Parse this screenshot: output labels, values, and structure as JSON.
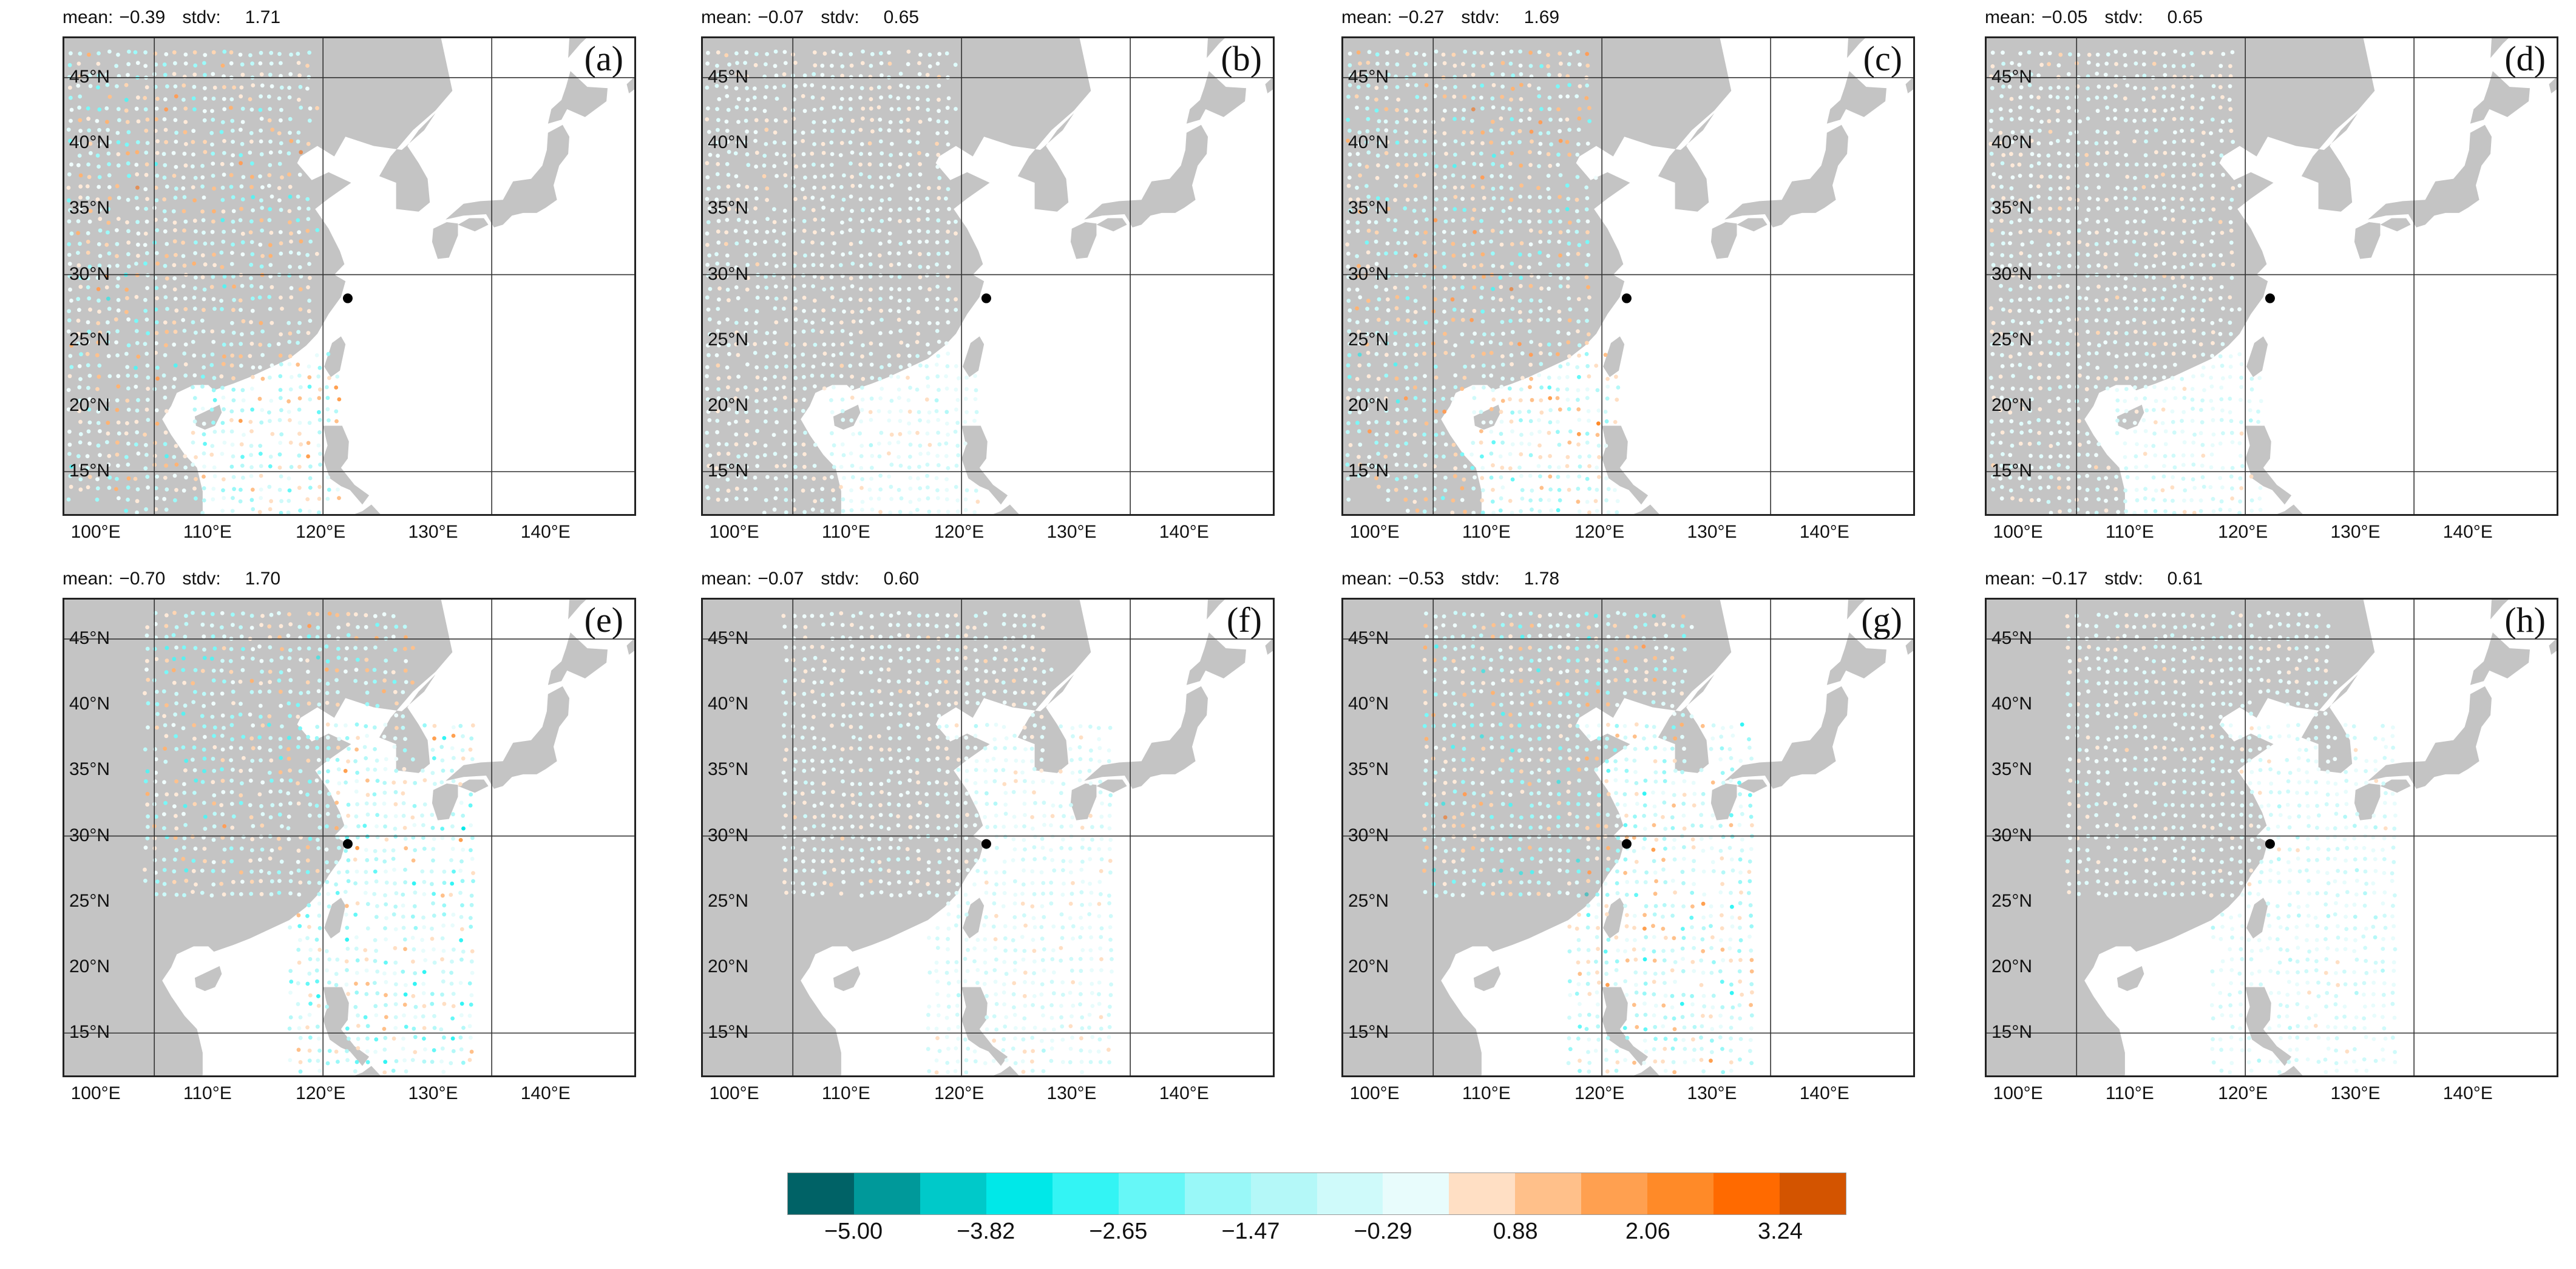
{
  "panels": [
    {
      "id": "a",
      "label": "(a)",
      "mean_label": "mean:",
      "mean": "−0.39",
      "stdv_label": "stdv:",
      "stdv": "1.71",
      "mean_value": -0.39,
      "stdv_value": 1.71,
      "coverage": "land"
    },
    {
      "id": "b",
      "label": "(b)",
      "mean_label": "mean:",
      "mean": "−0.07",
      "stdv_label": "stdv:",
      "stdv": "0.65",
      "mean_value": -0.07,
      "stdv_value": 0.65,
      "coverage": "land"
    },
    {
      "id": "c",
      "label": "(c)",
      "mean_label": "mean:",
      "mean": "−0.27",
      "stdv_label": "stdv:",
      "stdv": "1.69",
      "mean_value": -0.27,
      "stdv_value": 1.69,
      "coverage": "land"
    },
    {
      "id": "d",
      "label": "(d)",
      "mean_label": "mean:",
      "mean": "−0.05",
      "stdv_label": "stdv:",
      "stdv": "0.65",
      "mean_value": -0.05,
      "stdv_value": 0.65,
      "coverage": "land"
    },
    {
      "id": "e",
      "label": "(e)",
      "mean_label": "mean:",
      "mean": "−0.70",
      "stdv_label": "stdv:",
      "stdv": "1.70",
      "mean_value": -0.7,
      "stdv_value": 1.7,
      "coverage": "ocean"
    },
    {
      "id": "f",
      "label": "(f)",
      "mean_label": "mean:",
      "mean": "−0.07",
      "stdv_label": "stdv:",
      "stdv": "0.60",
      "mean_value": -0.07,
      "stdv_value": 0.6,
      "coverage": "ocean"
    },
    {
      "id": "g",
      "label": "(g)",
      "mean_label": "mean:",
      "mean": "−0.53",
      "stdv_label": "stdv:",
      "stdv": "1.78",
      "mean_value": -0.53,
      "stdv_value": 1.78,
      "coverage": "ocean"
    },
    {
      "id": "h",
      "label": "(h)",
      "mean_label": "mean:",
      "mean": "−0.17",
      "stdv_label": "stdv:",
      "stdv": "0.61",
      "mean_value": -0.17,
      "stdv_value": 0.61,
      "coverage": "ocean"
    }
  ],
  "latitude_labels": [
    "45°N",
    "40°N",
    "35°N",
    "30°N",
    "25°N",
    "20°N",
    "15°N"
  ],
  "latitude_values": [
    45,
    40,
    35,
    30,
    25,
    20,
    15
  ],
  "longitude_labels": [
    "100°E",
    "110°E",
    "120°E",
    "130°E",
    "140°E"
  ],
  "longitude_values": [
    100,
    110,
    120,
    130,
    140
  ],
  "map_extent": {
    "lon": [
      97,
      148
    ],
    "lat": [
      11.5,
      48
    ]
  },
  "station": {
    "lon_a_to_d": 122.2,
    "lat_a_to_d": 28.2,
    "lon_e_to_h": 122.2,
    "lat_e_to_h": 29.4
  },
  "colors": {
    "land": "#c4c4c4",
    "grid": "#333333",
    "station": "#000000"
  },
  "colorbar": {
    "colors": [
      "#006266",
      "#00999a",
      "#00c9c9",
      "#00e8e8",
      "#33f4f4",
      "#66f7f7",
      "#99f8f8",
      "#b4f8f8",
      "#cffafa",
      "#e8fcfc",
      "#ffdfc4",
      "#ffc08a",
      "#ffa050",
      "#ff8a28",
      "#ff6a00",
      "#d35400"
    ],
    "tick_labels": [
      "−5.00",
      "−3.82",
      "−2.65",
      "−1.47",
      "−0.29",
      "0.88",
      "2.06",
      "3.24"
    ],
    "tick_values": [
      -5.0,
      -3.82,
      -2.65,
      -1.47,
      -0.29,
      0.88,
      2.06,
      3.24
    ]
  }
}
